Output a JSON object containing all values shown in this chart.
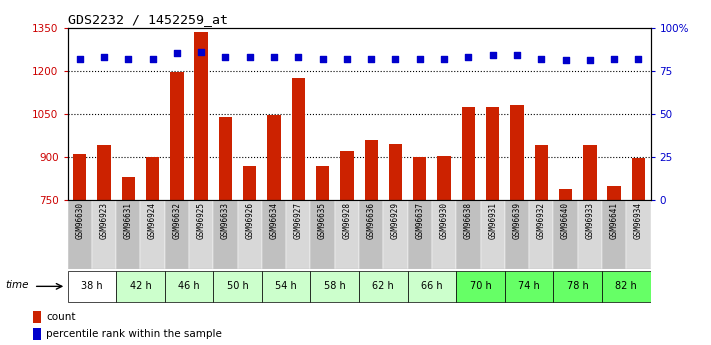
{
  "title": "GDS2232 / 1452259_at",
  "samples": [
    "GSM96630",
    "GSM96923",
    "GSM96631",
    "GSM96924",
    "GSM96632",
    "GSM96925",
    "GSM96633",
    "GSM96926",
    "GSM96634",
    "GSM96927",
    "GSM96635",
    "GSM96928",
    "GSM96636",
    "GSM96929",
    "GSM96637",
    "GSM96930",
    "GSM96638",
    "GSM96931",
    "GSM96639",
    "GSM96932",
    "GSM96640",
    "GSM96933",
    "GSM96641",
    "GSM96934"
  ],
  "counts": [
    910,
    940,
    830,
    900,
    1195,
    1335,
    1040,
    870,
    1045,
    1175,
    870,
    920,
    960,
    945,
    900,
    905,
    1075,
    1075,
    1080,
    940,
    790,
    940,
    800,
    895
  ],
  "percentiles": [
    82,
    83,
    82,
    82,
    85,
    86,
    83,
    83,
    83,
    83,
    82,
    82,
    82,
    82,
    82,
    82,
    83,
    84,
    84,
    82,
    81,
    81,
    82,
    82
  ],
  "time_groups": [
    {
      "label": "38 h",
      "indices": [
        0,
        1
      ],
      "bar_bg": "#ffffff",
      "time_color": "#ffffff",
      "name_color": "#c8c8c8"
    },
    {
      "label": "42 h",
      "indices": [
        2,
        3
      ],
      "bar_bg": "#ffffff",
      "time_color": "#ccffcc",
      "name_color": "#c8c8c8"
    },
    {
      "label": "46 h",
      "indices": [
        4,
        5
      ],
      "bar_bg": "#ffffff",
      "time_color": "#ccffcc",
      "name_color": "#c8c8c8"
    },
    {
      "label": "50 h",
      "indices": [
        6,
        7
      ],
      "bar_bg": "#ffffff",
      "time_color": "#ccffcc",
      "name_color": "#c8c8c8"
    },
    {
      "label": "54 h",
      "indices": [
        8,
        9
      ],
      "bar_bg": "#ffffff",
      "time_color": "#ccffcc",
      "name_color": "#c8c8c8"
    },
    {
      "label": "58 h",
      "indices": [
        10,
        11
      ],
      "bar_bg": "#ffffff",
      "time_color": "#ccffcc",
      "name_color": "#c8c8c8"
    },
    {
      "label": "62 h",
      "indices": [
        12,
        13
      ],
      "bar_bg": "#ffffff",
      "time_color": "#ccffcc",
      "name_color": "#c8c8c8"
    },
    {
      "label": "66 h",
      "indices": [
        14,
        15
      ],
      "bar_bg": "#ffffff",
      "time_color": "#ccffcc",
      "name_color": "#c8c8c8"
    },
    {
      "label": "70 h",
      "indices": [
        16,
        17
      ],
      "bar_bg": "#ffffff",
      "time_color": "#66ff66",
      "name_color": "#c8c8c8"
    },
    {
      "label": "74 h",
      "indices": [
        18,
        19
      ],
      "bar_bg": "#ffffff",
      "time_color": "#66ff66",
      "name_color": "#c8c8c8"
    },
    {
      "label": "78 h",
      "indices": [
        20,
        21
      ],
      "bar_bg": "#ffffff",
      "time_color": "#66ff66",
      "name_color": "#c8c8c8"
    },
    {
      "label": "82 h",
      "indices": [
        22,
        23
      ],
      "bar_bg": "#ffffff",
      "time_color": "#66ff66",
      "name_color": "#c8c8c8"
    }
  ],
  "ylim_left": [
    750,
    1350
  ],
  "ylim_right": [
    0,
    100
  ],
  "yticks_left": [
    750,
    900,
    1050,
    1200,
    1350
  ],
  "yticks_right": [
    0,
    25,
    50,
    75,
    100
  ],
  "bar_color": "#cc2200",
  "dot_color": "#0000cc",
  "grid_lines": [
    900,
    1050,
    1200
  ],
  "legend_items": [
    "count",
    "percentile rank within the sample"
  ]
}
